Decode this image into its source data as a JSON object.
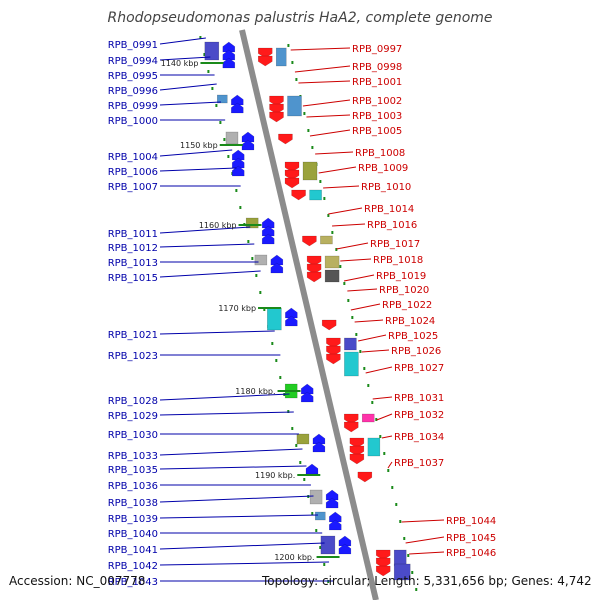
{
  "title": "Rhodopseudomonas palustris HaA2, complete genome",
  "accession": "Accession: NC_007778",
  "topology": "Topology: circular; Length: 5,331,656 bp; Genes: 4,742",
  "ruler_labels": [
    "1140 kbp",
    "1150 kbp",
    "1160 kbp",
    "1170 kbp",
    "1180 kbp.",
    "1190 kbp.",
    "1200 kbp."
  ],
  "left_genes": [
    "RPB_0991",
    "RPB_0994",
    "RPB_0995",
    "RPB_0996",
    "RPB_0999",
    "RPB_1000",
    "RPB_1004",
    "RPB_1006",
    "RPB_1007",
    "RPB_1011",
    "RPB_1012",
    "RPB_1013",
    "RPB_1015",
    "RPB_1021",
    "RPB_1023",
    "RPB_1028",
    "RPB_1029",
    "RPB_1030",
    "RPB_1033",
    "RPB_1035",
    "RPB_1036",
    "RPB_1038",
    "RPB_1039",
    "RPB_1040",
    "RPB_1041",
    "RPB_1042",
    "RPB_1043"
  ],
  "right_genes": [
    "RPB_0997",
    "RPB_0998",
    "RPB_1001",
    "RPB_1002",
    "RPB_1003",
    "RPB_1005",
    "RPB_1008",
    "RPB_1009",
    "RPB_1010",
    "RPB_1014",
    "RPB_1016",
    "RPB_1017",
    "RPB_1018",
    "RPB_1019",
    "RPB_1020",
    "RPB_1022",
    "RPB_1024",
    "RPB_1025",
    "RPB_1026",
    "RPB_1027",
    "RPB_1031",
    "RPB_1032",
    "RPB_1034",
    "RPB_1037",
    "RPB_1044",
    "RPB_1045",
    "RPB_1046"
  ],
  "colors": {
    "forward": "#1a1aff",
    "reverse": "#ff1a1a",
    "left_label": "#0000aa",
    "right_label": "#cc0000",
    "backbone": "#8c8c8c",
    "tick": "#1a8a1a",
    "block_palette": [
      "#4b4bc8",
      "#9aa23c",
      "#22c8cf",
      "#b0b0b0",
      "#b8b060",
      "#4f94cd",
      "#ff33aa",
      "#22cc22",
      "#555555"
    ]
  }
}
